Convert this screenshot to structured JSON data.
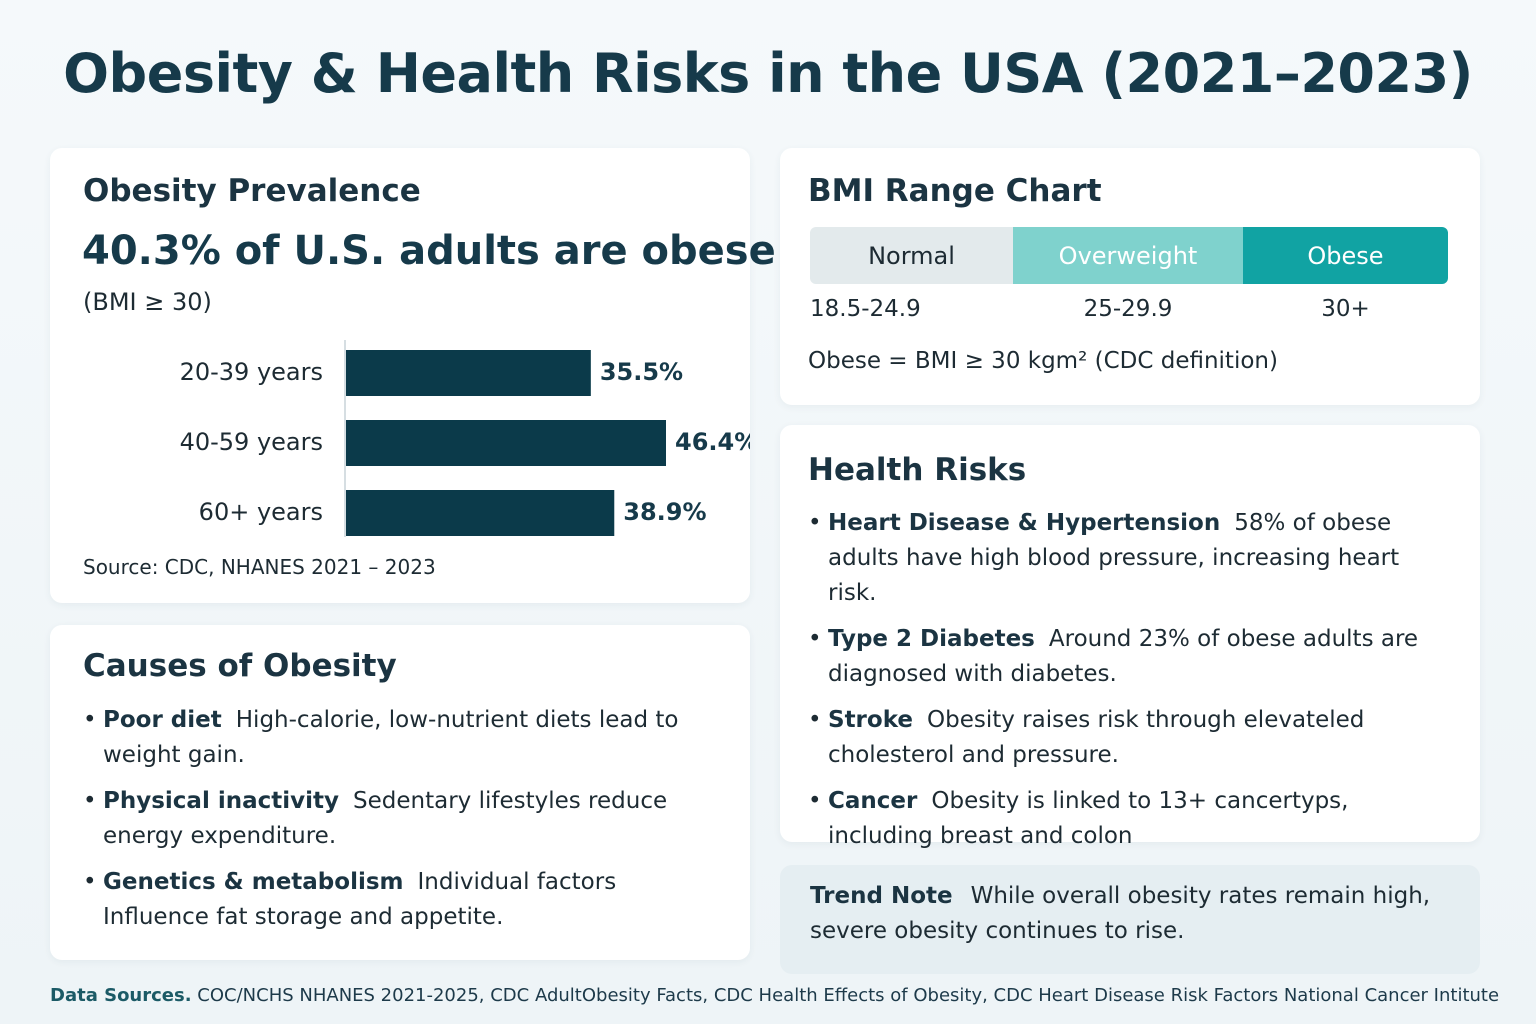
{
  "title": "Obesity & Health Risks in the USA (2021–2023)",
  "prevalence": {
    "heading": "Obesity Prevalence",
    "headline": "40.3% of U.S. adults are obese",
    "note": "(BMI ≥ 30)",
    "chart": {
      "type": "bar",
      "categories": [
        "20-39 years",
        "40-59 years",
        "60+ years"
      ],
      "values": [
        35.5,
        46.4,
        38.9
      ],
      "value_labels": [
        "35.5%",
        "46.4%",
        "38.9%"
      ],
      "color": "#0b3a4a"
    },
    "source": "Source: CDC, NHANES 2021 – 2023"
  },
  "bmi": {
    "heading": "BMI Range Chart",
    "ranges": [
      {
        "label": "Normal",
        "range": "18.5-24.9",
        "color": "#e3eaec",
        "text_color": "#1d2b33"
      },
      {
        "label": "Overweight",
        "range": "25-29.9",
        "color": "#7fd2cd",
        "text_color": "#ffffff"
      },
      {
        "label": "Obese",
        "range": "30+",
        "color": "#11a3a3",
        "text_color": "#ffffff"
      }
    ],
    "definition": "Obese = BMI ≥ 30 kgm² (CDC definition)"
  },
  "causes": {
    "heading": "Causes of Obesity",
    "items": [
      {
        "term": "Poor diet",
        "text": "High-calorie, low-nutrient diets lead to weight gain."
      },
      {
        "term": "Physical inactivity",
        "text": "Sedentary lifestyles reduce energy expenditure."
      },
      {
        "term": "Genetics & metabolism",
        "text": "Individual factors Influence fat storage and appetite."
      }
    ]
  },
  "risks": {
    "heading": "Health Risks",
    "items": [
      {
        "term": "Heart Disease & Hypertension",
        "text": "58% of obese adults have high blood pressure, increasing heart risk."
      },
      {
        "term": "Type 2 Diabetes",
        "text": "Around 23% of obese adults are diagnosed with diabetes."
      },
      {
        "term": "Stroke",
        "text": "Obesity raises risk through elevateled cholesterol and pressure."
      },
      {
        "term": "Cancer",
        "text": "Obesity is linked to 13+ cancertyps, including breast and colon"
      }
    ]
  },
  "trend": {
    "term": "Trend Note",
    "text": "While overall obesity rates remain high, severe obesity continues to rise."
  },
  "footer": {
    "term": "Data Sources.",
    "text": "COC/NCHS NHANES 2021-2025, CDC AdultObesity Facts, CDC Health Effects of Obesity, CDC Heart Disease Risk Factors National Cancer Intitute"
  }
}
